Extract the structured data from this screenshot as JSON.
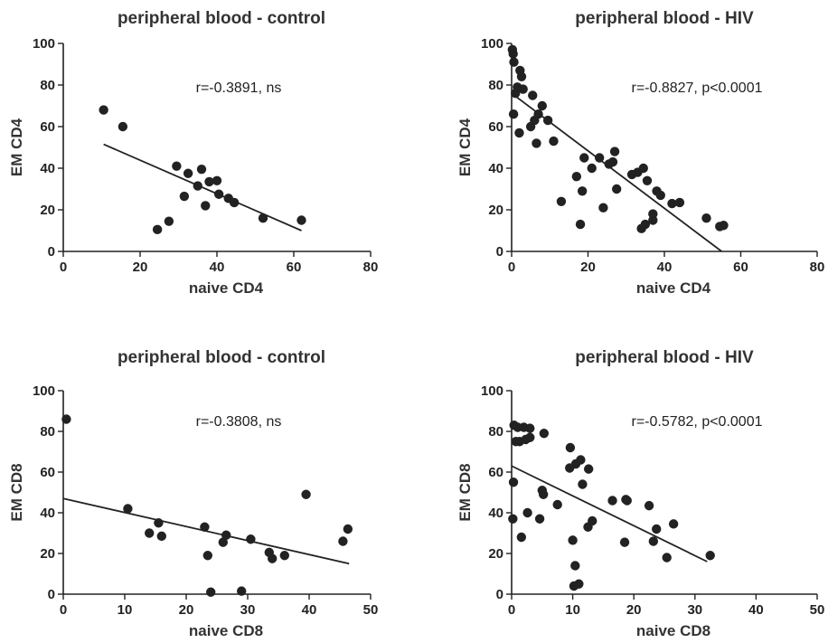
{
  "chart_data": [
    {
      "type": "scatter",
      "title": "peripheral blood - control",
      "xlabel": "naive CD4",
      "ylabel": "EM CD4",
      "xlim": [
        0,
        80
      ],
      "ylim": [
        0,
        100
      ],
      "xticks": [
        0,
        20,
        40,
        60,
        80
      ],
      "yticks": [
        0,
        20,
        40,
        60,
        80,
        100
      ],
      "annotation": "r=-0.3891, ns",
      "fit_line": [
        [
          10.5,
          51.5
        ],
        [
          62,
          10
        ]
      ],
      "points": [
        [
          10.5,
          68
        ],
        [
          15.5,
          60
        ],
        [
          24.5,
          10.5
        ],
        [
          27.5,
          14.5
        ],
        [
          29.5,
          41
        ],
        [
          31.5,
          26.5
        ],
        [
          32.5,
          37.5
        ],
        [
          35,
          31.5
        ],
        [
          36,
          39.5
        ],
        [
          37,
          22
        ],
        [
          38,
          33.5
        ],
        [
          40,
          34
        ],
        [
          40.5,
          27.5
        ],
        [
          43,
          25.5
        ],
        [
          44.5,
          23.5
        ],
        [
          52,
          16
        ],
        [
          62,
          15
        ]
      ]
    },
    {
      "type": "scatter",
      "title": "peripheral blood - HIV",
      "xlabel": "naive CD4",
      "ylabel": "EM CD4",
      "xlim": [
        0,
        80
      ],
      "ylim": [
        0,
        100
      ],
      "xticks": [
        0,
        20,
        40,
        60,
        80
      ],
      "yticks": [
        0,
        20,
        40,
        60,
        80,
        100
      ],
      "annotation": "r=-0.8827, p<0.0001",
      "fit_line": [
        [
          0,
          76
        ],
        [
          55,
          0
        ]
      ],
      "points": [
        [
          0.2,
          97
        ],
        [
          0.4,
          95
        ],
        [
          0.6,
          91
        ],
        [
          0.5,
          66
        ],
        [
          1,
          76
        ],
        [
          1.5,
          79
        ],
        [
          2.2,
          87
        ],
        [
          2.6,
          84
        ],
        [
          2,
          57
        ],
        [
          3,
          78
        ],
        [
          5,
          60
        ],
        [
          5.5,
          75
        ],
        [
          6,
          63
        ],
        [
          6.5,
          52
        ],
        [
          7,
          66
        ],
        [
          8,
          70
        ],
        [
          9.5,
          63
        ],
        [
          11,
          53
        ],
        [
          13,
          24
        ],
        [
          17,
          36
        ],
        [
          18,
          13
        ],
        [
          18.5,
          29
        ],
        [
          19,
          45
        ],
        [
          21,
          40
        ],
        [
          23,
          45
        ],
        [
          24,
          21
        ],
        [
          25.5,
          42
        ],
        [
          26.5,
          43
        ],
        [
          27,
          48
        ],
        [
          27.5,
          30
        ],
        [
          31.5,
          37
        ],
        [
          33,
          38
        ],
        [
          34,
          11
        ],
        [
          34.5,
          40
        ],
        [
          35,
          13
        ],
        [
          35.5,
          34
        ],
        [
          37,
          18
        ],
        [
          37,
          15
        ],
        [
          38,
          29
        ],
        [
          39,
          27
        ],
        [
          42,
          23
        ],
        [
          44,
          23.5
        ],
        [
          51,
          16
        ],
        [
          54.5,
          12
        ],
        [
          55.5,
          12.5
        ]
      ]
    },
    {
      "type": "scatter",
      "title": "peripheral blood - control",
      "xlabel": "naive CD8",
      "ylabel": "EM CD8",
      "xlim": [
        0,
        50
      ],
      "ylim": [
        0,
        100
      ],
      "xticks": [
        0,
        10,
        20,
        30,
        40,
        50
      ],
      "yticks": [
        0,
        20,
        40,
        60,
        80,
        100
      ],
      "annotation": "r=-0.3808, ns",
      "fit_line": [
        [
          0,
          47
        ],
        [
          46.5,
          15
        ]
      ],
      "points": [
        [
          0.5,
          86
        ],
        [
          10.5,
          42
        ],
        [
          14,
          30
        ],
        [
          15.5,
          35
        ],
        [
          16,
          28.5
        ],
        [
          23,
          33
        ],
        [
          23.5,
          19
        ],
        [
          24,
          1
        ],
        [
          26,
          25.5
        ],
        [
          26.5,
          29
        ],
        [
          29,
          1.5
        ],
        [
          30.5,
          27
        ],
        [
          33.5,
          20.5
        ],
        [
          34,
          17.5
        ],
        [
          36,
          19
        ],
        [
          39.5,
          49
        ],
        [
          45.5,
          26
        ],
        [
          46.3,
          32
        ]
      ]
    },
    {
      "type": "scatter",
      "title": "peripheral blood - HIV",
      "xlabel": "naive CD8",
      "ylabel": "EM CD8",
      "xlim": [
        0,
        50
      ],
      "ylim": [
        0,
        100
      ],
      "xticks": [
        0,
        10,
        20,
        30,
        40,
        50
      ],
      "yticks": [
        0,
        20,
        40,
        60,
        80,
        100
      ],
      "annotation": "r=-0.5782, p<0.0001",
      "fit_line": [
        [
          0,
          63
        ],
        [
          32,
          16
        ]
      ],
      "points": [
        [
          0.2,
          37
        ],
        [
          0.3,
          55
        ],
        [
          0.4,
          83
        ],
        [
          0.7,
          75
        ],
        [
          1,
          82
        ],
        [
          1.3,
          75
        ],
        [
          1.6,
          28
        ],
        [
          2,
          82
        ],
        [
          2.3,
          76
        ],
        [
          2.6,
          40
        ],
        [
          3,
          81.5
        ],
        [
          3,
          77
        ],
        [
          4.6,
          37
        ],
        [
          5,
          51
        ],
        [
          5.2,
          49
        ],
        [
          5.3,
          79
        ],
        [
          7.5,
          44
        ],
        [
          9.5,
          62
        ],
        [
          9.6,
          72
        ],
        [
          10,
          26.5
        ],
        [
          10.2,
          4
        ],
        [
          10.4,
          14
        ],
        [
          10.5,
          64
        ],
        [
          11,
          5
        ],
        [
          11.3,
          66
        ],
        [
          11.6,
          54
        ],
        [
          12.5,
          33
        ],
        [
          12.6,
          61.5
        ],
        [
          13.2,
          36
        ],
        [
          16.5,
          46
        ],
        [
          18.5,
          25.5
        ],
        [
          18.7,
          46.5
        ],
        [
          18.9,
          46
        ],
        [
          22.5,
          43.5
        ],
        [
          23.2,
          26
        ],
        [
          23.7,
          32
        ],
        [
          25.4,
          18
        ],
        [
          26.5,
          34.5
        ],
        [
          32.5,
          19
        ]
      ]
    }
  ]
}
